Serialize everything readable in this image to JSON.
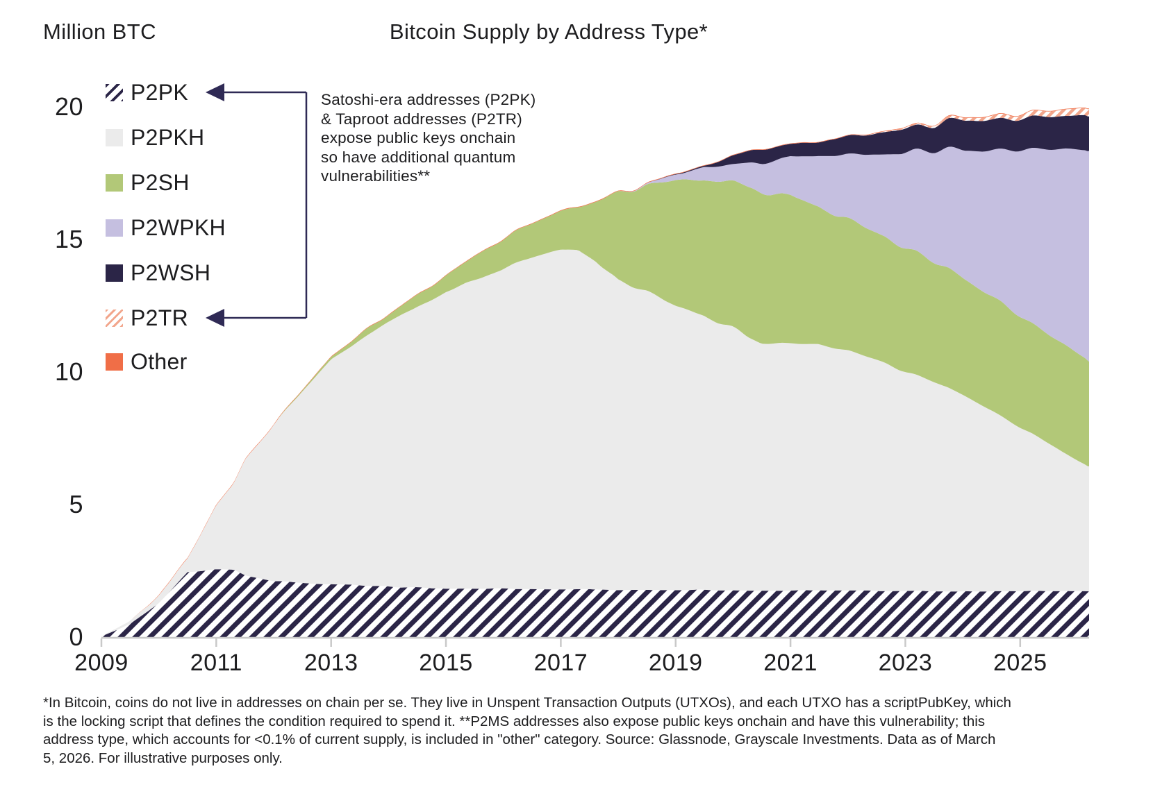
{
  "header": {
    "y_axis_title": "Million BTC",
    "title": "Bitcoin Supply by Address Type*"
  },
  "annotation": {
    "lines": [
      "Satoshi-era addresses (P2PK)",
      "& Taproot addresses (P2TR)",
      "expose public keys onchain",
      "so have additional quantum",
      "vulnerabilities**"
    ]
  },
  "axes": {
    "y_ticks": [
      "20",
      "15",
      "10",
      "5",
      "0"
    ],
    "x_ticks": [
      "2009",
      "2011",
      "2013",
      "2015",
      "2017",
      "2019",
      "2021",
      "2023",
      "2025"
    ]
  },
  "footnote": {
    "lines": [
      "*In Bitcoin, coins do not live in addresses on chain per se. They live in Unspent Transaction Outputs (UTXOs), and each UTXO has a scriptPubKey, which",
      "is the locking script that defines the condition required to spend it. **P2MS addresses also expose public keys onchain and have this vulnerability; this",
      "address type, which accounts for <0.1% of current supply, is included in \"other\" category. Source: Glassnode, Grayscale Investments. Data as of March",
      "5, 2026. For illustrative purposes only."
    ]
  },
  "colors": {
    "text": "#1d1d1f",
    "axis_line": "#c9c9c9",
    "annotation_bracket": "#2f2a55",
    "background": "#ffffff"
  },
  "chart_data": {
    "type": "area",
    "stacked": true,
    "title": "Bitcoin Supply by Address Type*",
    "ylabel": "Million BTC",
    "ylim": [
      0,
      20
    ],
    "x_range": [
      2009,
      2026.2
    ],
    "grid": false,
    "legend_position": "upper-left",
    "x": [
      2009.0,
      2009.5,
      2010.0,
      2010.5,
      2011.0,
      2011.3,
      2011.5,
      2012.0,
      2012.5,
      2013.0,
      2013.5,
      2014.0,
      2014.5,
      2015.0,
      2015.5,
      2016.0,
      2016.5,
      2017.0,
      2017.3,
      2017.6,
      2018.0,
      2018.5,
      2019.0,
      2019.5,
      2020.0,
      2020.5,
      2021.0,
      2021.5,
      2022.0,
      2022.5,
      2023.0,
      2023.5,
      2024.0,
      2024.5,
      2025.0,
      2025.5,
      2026.0,
      2026.2
    ],
    "series": [
      {
        "name": "P2PK",
        "color": "#2b2547",
        "pattern": "hatch-wide",
        "values": [
          0.02,
          0.5,
          1.3,
          2.45,
          2.57,
          2.55,
          2.35,
          2.1,
          2.05,
          2.0,
          1.95,
          1.9,
          1.87,
          1.85,
          1.84,
          1.83,
          1.82,
          1.81,
          1.8,
          1.8,
          1.79,
          1.79,
          1.78,
          1.78,
          1.77,
          1.77,
          1.76,
          1.76,
          1.76,
          1.75,
          1.75,
          1.75,
          1.74,
          1.74,
          1.73,
          1.73,
          1.72,
          1.72
        ]
      },
      {
        "name": "P2PKH",
        "color": "#ebebeb",
        "pattern": null,
        "values": [
          0.01,
          0.1,
          0.31,
          0.48,
          2.43,
          3.23,
          4.33,
          5.88,
          7.18,
          8.49,
          9.25,
          9.98,
          10.61,
          11.2,
          11.62,
          12.08,
          12.46,
          12.8,
          12.83,
          12.43,
          11.67,
          11.24,
          10.72,
          10.37,
          9.89,
          9.37,
          9.35,
          9.29,
          9.04,
          8.7,
          8.29,
          7.89,
          7.36,
          6.79,
          6.17,
          5.56,
          4.94,
          4.72
        ]
      },
      {
        "name": "P2SH",
        "color": "#b2c878",
        "pattern": null,
        "values": [
          0,
          0,
          0,
          0,
          0,
          0,
          0,
          0,
          0.05,
          0.1,
          0.2,
          0.3,
          0.45,
          0.6,
          0.9,
          1.1,
          1.3,
          1.45,
          1.6,
          2.2,
          3.3,
          4.0,
          4.7,
          5.1,
          5.5,
          5.7,
          5.55,
          5.2,
          4.95,
          4.8,
          4.7,
          4.55,
          4.4,
          4.3,
          4.2,
          4.1,
          4.0,
          3.95
        ]
      },
      {
        "name": "P2WPKH",
        "color": "#c5bfe0",
        "pattern": null,
        "values": [
          0,
          0,
          0,
          0,
          0,
          0,
          0,
          0,
          0,
          0,
          0,
          0,
          0,
          0,
          0,
          0,
          0,
          0,
          0,
          0,
          0,
          0.05,
          0.2,
          0.45,
          0.65,
          1.05,
          1.5,
          1.95,
          2.45,
          3.0,
          3.55,
          4.15,
          4.85,
          5.55,
          6.3,
          7.0,
          7.7,
          7.95
        ]
      },
      {
        "name": "P2WSH",
        "color": "#2b2547",
        "pattern": null,
        "values": [
          0,
          0,
          0,
          0,
          0,
          0,
          0,
          0,
          0,
          0,
          0,
          0,
          0,
          0,
          0,
          0,
          0,
          0,
          0,
          0,
          0,
          0,
          0.02,
          0.05,
          0.3,
          0.5,
          0.45,
          0.55,
          0.7,
          0.8,
          0.9,
          1.0,
          1.1,
          1.15,
          1.2,
          1.25,
          1.28,
          1.3
        ]
      },
      {
        "name": "P2TR",
        "color": "#f2a68c",
        "pattern": "hatch-fine",
        "values": [
          0,
          0,
          0,
          0,
          0,
          0,
          0,
          0,
          0,
          0,
          0,
          0,
          0,
          0,
          0,
          0,
          0,
          0,
          0,
          0,
          0,
          0,
          0,
          0,
          0,
          0,
          0,
          0,
          0,
          0.02,
          0.04,
          0.06,
          0.1,
          0.14,
          0.18,
          0.22,
          0.26,
          0.28
        ]
      },
      {
        "name": "Other",
        "color": "#f06e47",
        "pattern": null,
        "values": [
          0,
          0,
          0.02,
          0.02,
          0.02,
          0.02,
          0.02,
          0.02,
          0.02,
          0.02,
          0.02,
          0.02,
          0.02,
          0.02,
          0.02,
          0.02,
          0.02,
          0.02,
          0.02,
          0.02,
          0.02,
          0.02,
          0.02,
          0.02,
          0.02,
          0.02,
          0.02,
          0.02,
          0.02,
          0.02,
          0.02,
          0.02,
          0.02,
          0.02,
          0.02,
          0.02,
          0.02,
          0.02
        ]
      }
    ]
  }
}
